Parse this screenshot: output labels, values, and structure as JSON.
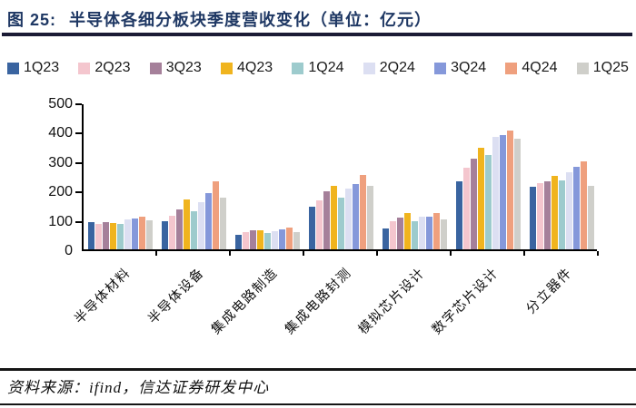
{
  "header": {
    "figure_label": "图 25:",
    "title": "半导体各细分板块季度营收变化（单位：亿元）"
  },
  "footer": {
    "source_text": "资料来源：ifind，信达证券研发中心"
  },
  "colors": {
    "title": "#1f3864",
    "axis": "#000000",
    "rule": "#1b1b35"
  },
  "chart_data": {
    "type": "bar",
    "title": "半导体各细分板块季度营收变化（单位：亿元）",
    "unit": "亿元",
    "categories": [
      "半导体材料",
      "半导体设备",
      "集成电路制造",
      "集成电路封测",
      "模拟芯片设计",
      "数字芯片设计",
      "分立器件"
    ],
    "series": [
      {
        "name": "1Q23",
        "color": "#3a64a0",
        "values": [
          92,
          95,
          48,
          145,
          72,
          233,
          212
        ]
      },
      {
        "name": "2Q23",
        "color": "#f4c6ce",
        "values": [
          85,
          115,
          60,
          168,
          95,
          278,
          225
        ]
      },
      {
        "name": "3Q23",
        "color": "#a5809a",
        "values": [
          92,
          135,
          65,
          198,
          107,
          308,
          230
        ]
      },
      {
        "name": "4Q23",
        "color": "#f0b41e",
        "values": [
          90,
          170,
          65,
          215,
          122,
          345,
          250
        ]
      },
      {
        "name": "1Q24",
        "color": "#9dcbcd",
        "values": [
          88,
          130,
          55,
          175,
          95,
          320,
          235
        ]
      },
      {
        "name": "2Q24",
        "color": "#dcdff2",
        "values": [
          102,
          160,
          62,
          207,
          112,
          383,
          262
        ]
      },
      {
        "name": "3Q24",
        "color": "#8598da",
        "values": [
          104,
          190,
          68,
          222,
          110,
          390,
          280
        ]
      },
      {
        "name": "4Q24",
        "color": "#efa07e",
        "values": [
          112,
          230,
          75,
          254,
          122,
          404,
          300
        ]
      },
      {
        "name": "1Q25",
        "color": "#cfcfca",
        "values": [
          100,
          175,
          60,
          215,
          102,
          377,
          215
        ]
      }
    ],
    "ylim": [
      0,
      500
    ],
    "yticks": [
      0,
      100,
      200,
      300,
      400,
      500
    ],
    "xlabel": "",
    "ylabel": "",
    "grid": false,
    "legend_position": "top"
  }
}
